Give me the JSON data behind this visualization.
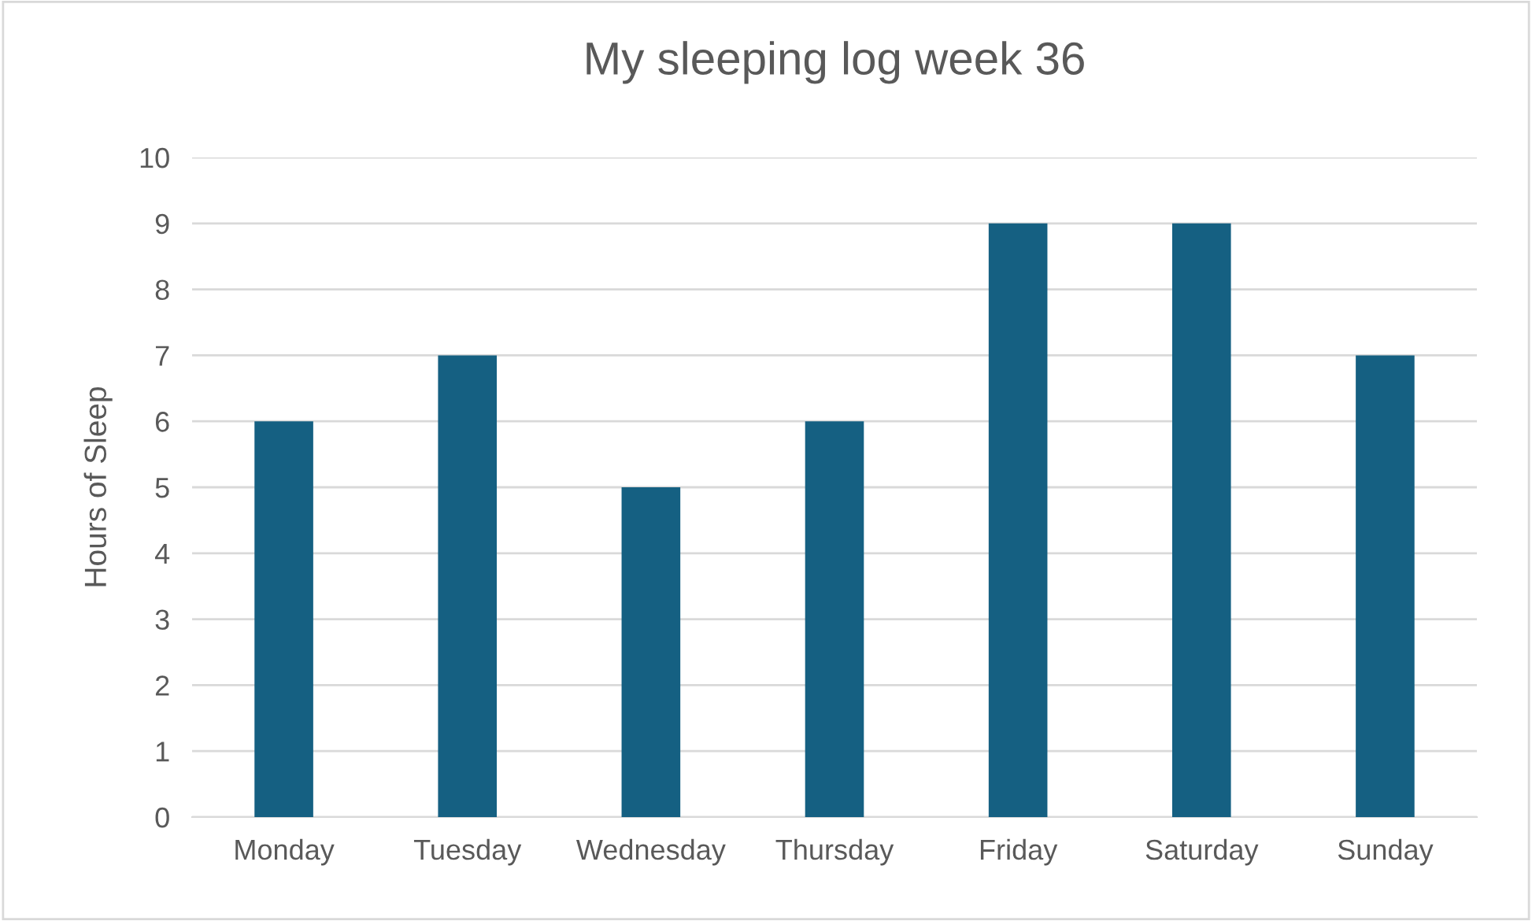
{
  "chart_data": {
    "type": "bar",
    "title": "My sleeping log week 36",
    "ylabel": "Hours of Sleep",
    "categories": [
      "Monday",
      "Tuesday",
      "Wednesday",
      "Thursday",
      "Friday",
      "Saturday",
      "Sunday"
    ],
    "values": [
      6,
      7,
      5,
      6,
      9,
      9,
      7
    ],
    "color": "#156082",
    "ylim": [
      0,
      10
    ],
    "yticks": [
      0,
      1,
      2,
      3,
      4,
      5,
      6,
      7,
      8,
      9,
      10
    ],
    "grid": "y"
  }
}
